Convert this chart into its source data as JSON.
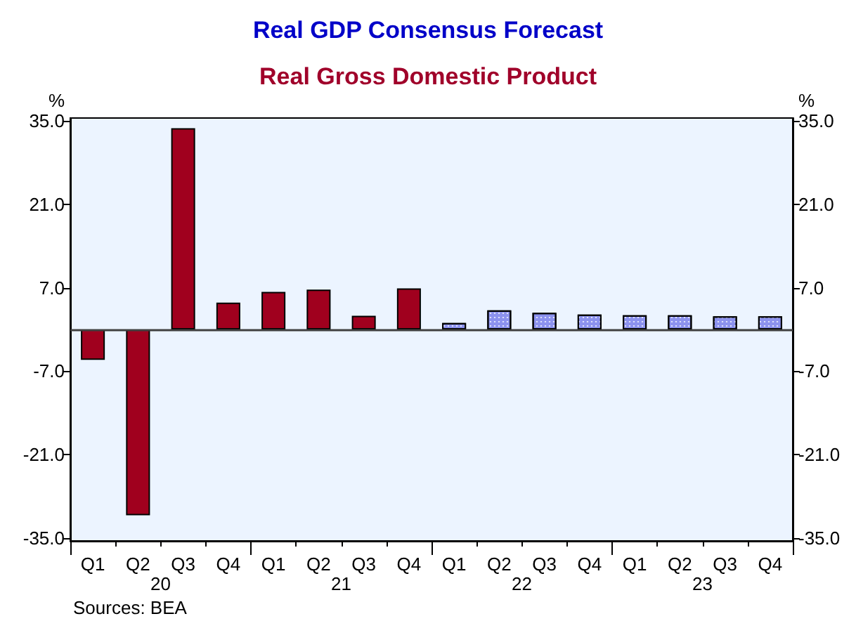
{
  "chart_data": {
    "type": "bar",
    "title": "Real GDP Consensus Forecast",
    "subtitle": "Real Gross Domestic Product",
    "ylabel": "%",
    "y2label": "%",
    "categories": [
      "Q1",
      "Q2",
      "Q3",
      "Q4",
      "Q1",
      "Q2",
      "Q3",
      "Q4",
      "Q1",
      "Q2",
      "Q3",
      "Q4",
      "Q1",
      "Q2",
      "Q3",
      "Q4"
    ],
    "series": [
      {
        "color": "#a0001e",
        "values": [
          -5.1,
          -31.2,
          33.8,
          4.5,
          6.3,
          6.7,
          2.3,
          6.9,
          null,
          null,
          null,
          null,
          null,
          null,
          null,
          null
        ]
      },
      {
        "color": "#8c92ee",
        "values": [
          null,
          null,
          null,
          null,
          null,
          null,
          null,
          null,
          1.1,
          3.2,
          2.8,
          2.5,
          2.4,
          2.4,
          2.2,
          2.2
        ]
      }
    ],
    "ylim": [
      -35.5,
      35.5
    ],
    "yticks": [
      {
        "value": -35,
        "label": "-35.0"
      },
      {
        "value": -21,
        "label": "-21.0"
      },
      {
        "value": -7,
        "label": "-7.0"
      },
      {
        "value": 7,
        "label": "7.0"
      },
      {
        "value": 21,
        "label": "21.0"
      },
      {
        "value": 35,
        "label": "35.0"
      }
    ],
    "y2lim": [
      -35.5,
      35.5
    ],
    "y2ticks": [
      {
        "value": -35,
        "label": "-35.0"
      },
      {
        "value": -21,
        "label": "-21.0"
      },
      {
        "value": -7,
        "label": "-7.0"
      },
      {
        "value": 7,
        "label": "7.0"
      },
      {
        "value": 21,
        "label": "21.0"
      },
      {
        "value": 35,
        "label": "35.0"
      }
    ],
    "ref_lines": [
      {
        "axis": "y",
        "value": 0,
        "color": "#404040"
      }
    ],
    "annotations": [
      "20",
      "21",
      "22",
      "23",
      "Sources: BEA"
    ]
  }
}
